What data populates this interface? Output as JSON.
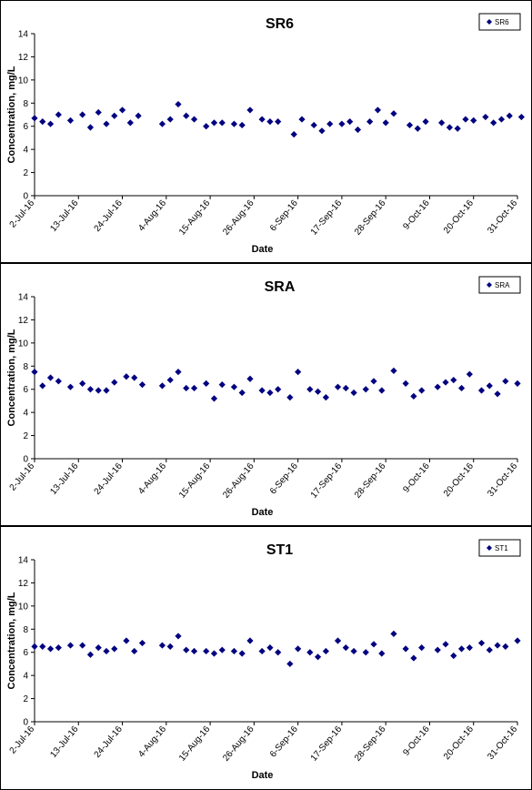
{
  "chart_data": [
    {
      "type": "scatter",
      "title": "SR6",
      "xlabel": "Date",
      "ylabel": "Concentration, mg/L",
      "ylim": [
        0,
        14
      ],
      "yticks": [
        0,
        2,
        4,
        6,
        8,
        10,
        12,
        14
      ],
      "x_tick_labels": [
        "2-Jul-16",
        "13-Jul-16",
        "24-Jul-16",
        "4-Aug-16",
        "15-Aug-16",
        "26-Aug-16",
        "6-Sep-16",
        "17-Sep-16",
        "28-Sep-16",
        "9-Oct-16",
        "20-Oct-16",
        "31-Oct-16"
      ],
      "legend": "top-right",
      "marker": "diamond",
      "color": "#000080",
      "series": [
        {
          "name": "SR6",
          "x": [
            "2-Jul-16",
            "4-Jul-16",
            "6-Jul-16",
            "8-Jul-16",
            "11-Jul-16",
            "14-Jul-16",
            "16-Jul-16",
            "18-Jul-16",
            "20-Jul-16",
            "22-Jul-16",
            "24-Jul-16",
            "26-Jul-16",
            "28-Jul-16",
            "3-Aug-16",
            "5-Aug-16",
            "7-Aug-16",
            "9-Aug-16",
            "11-Aug-16",
            "14-Aug-16",
            "16-Aug-16",
            "18-Aug-16",
            "21-Aug-16",
            "23-Aug-16",
            "25-Aug-16",
            "28-Aug-16",
            "30-Aug-16",
            "1-Sep-16",
            "5-Sep-16",
            "7-Sep-16",
            "10-Sep-16",
            "12-Sep-16",
            "14-Sep-16",
            "17-Sep-16",
            "19-Sep-16",
            "21-Sep-16",
            "24-Sep-16",
            "26-Sep-16",
            "28-Sep-16",
            "30-Sep-16",
            "4-Oct-16",
            "6-Oct-16",
            "8-Oct-16",
            "12-Oct-16",
            "14-Oct-16",
            "16-Oct-16",
            "18-Oct-16",
            "20-Oct-16",
            "23-Oct-16",
            "25-Oct-16",
            "27-Oct-16",
            "29-Oct-16",
            "1-Nov-16"
          ],
          "y": [
            6.7,
            6.4,
            6.2,
            7.0,
            6.5,
            7.0,
            5.9,
            7.2,
            6.2,
            6.9,
            7.4,
            6.3,
            6.9,
            6.2,
            6.6,
            7.9,
            6.9,
            6.6,
            6.0,
            6.3,
            6.3,
            6.2,
            6.1,
            7.4,
            6.6,
            6.4,
            6.4,
            5.3,
            6.6,
            6.1,
            5.6,
            6.2,
            6.2,
            6.4,
            5.7,
            6.4,
            7.4,
            6.3,
            7.1,
            6.1,
            5.8,
            6.4,
            6.3,
            5.9,
            5.8,
            6.6,
            6.5,
            6.8,
            6.3,
            6.6,
            6.9,
            6.8
          ]
        }
      ]
    },
    {
      "type": "scatter",
      "title": "SRA",
      "xlabel": "Date",
      "ylabel": "Concentration, mg/L",
      "ylim": [
        0,
        14
      ],
      "yticks": [
        0,
        2,
        4,
        6,
        8,
        10,
        12,
        14
      ],
      "x_tick_labels": [
        "2-Jul-16",
        "13-Jul-16",
        "24-Jul-16",
        "4-Aug-16",
        "15-Aug-16",
        "26-Aug-16",
        "6-Sep-16",
        "17-Sep-16",
        "28-Sep-16",
        "9-Oct-16",
        "20-Oct-16",
        "31-Oct-16"
      ],
      "legend": "top-right",
      "marker": "diamond",
      "color": "#000080",
      "series": [
        {
          "name": "SRA",
          "x": [
            "2-Jul-16",
            "4-Jul-16",
            "6-Jul-16",
            "8-Jul-16",
            "11-Jul-16",
            "14-Jul-16",
            "16-Jul-16",
            "18-Jul-16",
            "20-Jul-16",
            "22-Jul-16",
            "25-Jul-16",
            "27-Jul-16",
            "29-Jul-16",
            "3-Aug-16",
            "5-Aug-16",
            "7-Aug-16",
            "9-Aug-16",
            "11-Aug-16",
            "14-Aug-16",
            "16-Aug-16",
            "18-Aug-16",
            "21-Aug-16",
            "23-Aug-16",
            "25-Aug-16",
            "28-Aug-16",
            "30-Aug-16",
            "1-Sep-16",
            "4-Sep-16",
            "6-Sep-16",
            "9-Sep-16",
            "11-Sep-16",
            "13-Sep-16",
            "16-Sep-16",
            "18-Sep-16",
            "20-Sep-16",
            "23-Sep-16",
            "25-Sep-16",
            "27-Sep-16",
            "30-Sep-16",
            "3-Oct-16",
            "5-Oct-16",
            "7-Oct-16",
            "11-Oct-16",
            "13-Oct-16",
            "15-Oct-16",
            "17-Oct-16",
            "19-Oct-16",
            "22-Oct-16",
            "24-Oct-16",
            "26-Oct-16",
            "28-Oct-16",
            "31-Oct-16"
          ],
          "y": [
            7.5,
            6.3,
            7.0,
            6.7,
            6.2,
            6.5,
            6.0,
            5.9,
            5.9,
            6.6,
            7.1,
            7.0,
            6.4,
            6.3,
            6.8,
            7.5,
            6.1,
            6.1,
            6.5,
            5.2,
            6.4,
            6.2,
            5.7,
            6.9,
            5.9,
            5.7,
            6.0,
            5.3,
            7.5,
            6.0,
            5.8,
            5.3,
            6.2,
            6.1,
            5.7,
            6.0,
            6.7,
            5.9,
            7.6,
            6.5,
            5.4,
            5.9,
            6.2,
            6.6,
            6.8,
            6.1,
            7.3,
            5.9,
            6.3,
            5.6,
            6.7,
            6.5
          ]
        }
      ]
    },
    {
      "type": "scatter",
      "title": "ST1",
      "xlabel": "Date",
      "ylabel": "Concentration, mg/L",
      "ylim": [
        0,
        14
      ],
      "yticks": [
        0,
        2,
        4,
        6,
        8,
        10,
        12,
        14
      ],
      "x_tick_labels": [
        "2-Jul-16",
        "13-Jul-16",
        "24-Jul-16",
        "4-Aug-16",
        "15-Aug-16",
        "26-Aug-16",
        "6-Sep-16",
        "17-Sep-16",
        "28-Sep-16",
        "9-Oct-16",
        "20-Oct-16",
        "31-Oct-16"
      ],
      "legend": "top-right",
      "marker": "diamond",
      "color": "#000080",
      "series": [
        {
          "name": "ST1",
          "x": [
            "2-Jul-16",
            "4-Jul-16",
            "6-Jul-16",
            "8-Jul-16",
            "11-Jul-16",
            "14-Jul-16",
            "16-Jul-16",
            "18-Jul-16",
            "20-Jul-16",
            "22-Jul-16",
            "25-Jul-16",
            "27-Jul-16",
            "29-Jul-16",
            "3-Aug-16",
            "5-Aug-16",
            "7-Aug-16",
            "9-Aug-16",
            "11-Aug-16",
            "14-Aug-16",
            "16-Aug-16",
            "18-Aug-16",
            "21-Aug-16",
            "23-Aug-16",
            "25-Aug-16",
            "28-Aug-16",
            "30-Aug-16",
            "1-Sep-16",
            "4-Sep-16",
            "6-Sep-16",
            "9-Sep-16",
            "11-Sep-16",
            "13-Sep-16",
            "16-Sep-16",
            "18-Sep-16",
            "20-Sep-16",
            "23-Sep-16",
            "25-Sep-16",
            "27-Sep-16",
            "30-Sep-16",
            "3-Oct-16",
            "5-Oct-16",
            "7-Oct-16",
            "11-Oct-16",
            "13-Oct-16",
            "15-Oct-16",
            "17-Oct-16",
            "19-Oct-16",
            "22-Oct-16",
            "24-Oct-16",
            "26-Oct-16",
            "28-Oct-16",
            "31-Oct-16"
          ],
          "y": [
            6.5,
            6.5,
            6.3,
            6.4,
            6.6,
            6.6,
            5.8,
            6.4,
            6.1,
            6.3,
            7.0,
            6.1,
            6.8,
            6.6,
            6.5,
            7.4,
            6.2,
            6.1,
            6.1,
            5.9,
            6.2,
            6.1,
            5.9,
            7.0,
            6.1,
            6.4,
            6.0,
            5.0,
            6.3,
            6.0,
            5.6,
            6.1,
            7.0,
            6.4,
            6.1,
            6.0,
            6.7,
            5.9,
            7.6,
            6.3,
            5.5,
            6.4,
            6.2,
            6.7,
            5.7,
            6.3,
            6.4,
            6.8,
            6.2,
            6.6,
            6.5,
            7.0
          ]
        }
      ]
    }
  ]
}
